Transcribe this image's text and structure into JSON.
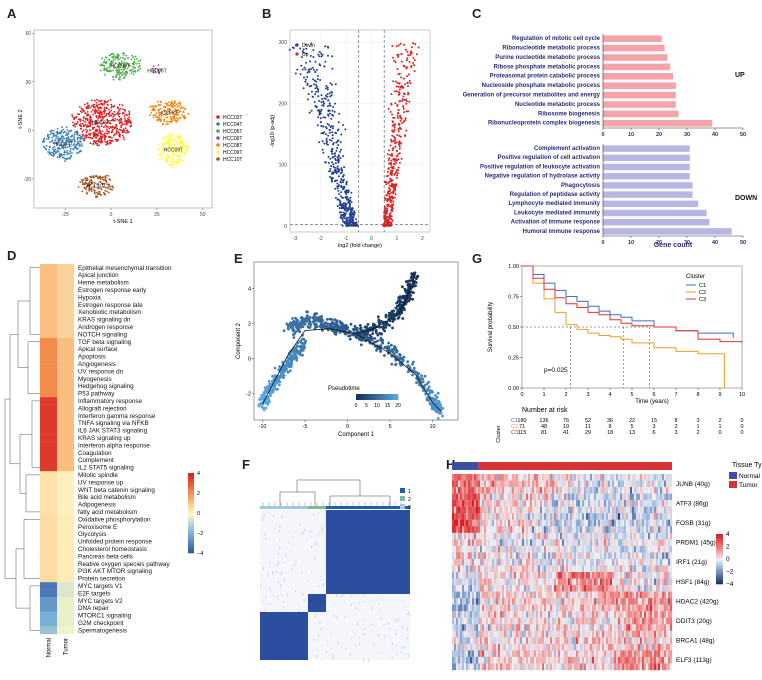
{
  "panels": {
    "A": "A",
    "B": "B",
    "C": "C",
    "D": "D",
    "E": "E",
    "F": "F",
    "G": "G",
    "H": "H"
  },
  "chart_data": [
    {
      "id": "A",
      "type": "scatter",
      "xlabel": "t-SNE 1",
      "ylabel": "t-SNE 2",
      "xticks": [
        -25,
        0,
        25,
        50
      ],
      "yticks": [
        -30,
        0,
        30,
        60
      ],
      "xlim": [
        -42,
        55
      ],
      "ylim": [
        -48,
        62
      ],
      "legend": [
        "HCC03T",
        "HCC04T",
        "HCC05T",
        "HCC06T",
        "HCC08T",
        "HCC09T",
        "HCC10T"
      ],
      "colors": [
        "#e41a1c",
        "#377eb8",
        "#4daf4a",
        "#984ea3",
        "#ff7f00",
        "#ffff33",
        "#a65628"
      ],
      "clusters": [
        {
          "label": "HCC03T",
          "cx": -5,
          "cy": 5,
          "rx": 16,
          "ry": 14
        },
        {
          "label": "HCC04T",
          "cx": -26,
          "cy": -8,
          "rx": 11,
          "ry": 10
        },
        {
          "label": "HCC05T",
          "cx": 5,
          "cy": 40,
          "rx": 11,
          "ry": 8
        },
        {
          "label": "HCC06T",
          "cx": 25,
          "cy": 37,
          "rx": 3,
          "ry": 2.5
        },
        {
          "label": "HCC08T",
          "cx": 31,
          "cy": 11,
          "rx": 10,
          "ry": 7
        },
        {
          "label": "HCC09T",
          "cx": 34,
          "cy": -12,
          "rx": 8,
          "ry": 10
        },
        {
          "label": "HCC10T",
          "cx": -8,
          "cy": -34,
          "rx": 9,
          "ry": 7
        }
      ]
    },
    {
      "id": "B",
      "type": "scatter",
      "xlabel": "log2 (fold change)",
      "ylabel": "-log10 (p-adj)",
      "xticks": [
        -3,
        -2,
        -1,
        0,
        1,
        2
      ],
      "yticks": [
        0,
        100,
        200,
        300
      ],
      "xlim": [
        -3.2,
        2.3
      ],
      "ylim": [
        -10,
        320
      ],
      "legend": [
        "Down",
        "Up"
      ],
      "colors": [
        "#223f8f",
        "#e02020"
      ]
    },
    {
      "id": "C",
      "type": "bar",
      "xlabel": "Gene count",
      "xticks": [
        0,
        10,
        20,
        30,
        40,
        50
      ],
      "xlim": [
        0,
        50
      ],
      "groups": [
        {
          "label": "UP",
          "color": "#f4a3a8",
          "categories": [
            "Regulation of mitotic cell cycle",
            "Ribonucleotide metabolic process",
            "Purine nucleotide metabolic process",
            "Ribose phosphate metabolic process",
            "Proteasomal protein catabolic process",
            "Nucleoside phosphate metabolic process",
            "Generation of precursor metabolites and energy",
            "Nucleotide metabolic process",
            "Ribosome biogenesis",
            "Ribonucleoprotein complex biogenesis"
          ],
          "values": [
            21,
            22,
            23,
            24,
            25,
            26,
            26,
            26,
            27,
            39
          ]
        },
        {
          "label": "DOWN",
          "color": "#b7b7e6",
          "categories": [
            "Complement activation",
            "Positive regulation of cell activation",
            "Positive regulation of leukocyte activation",
            "Negative regulation of hydrolase activity",
            "Phagocytosis",
            "Regulation of peptidase activity",
            "Lymphocyte mediated immunity",
            "Leukocyte mediated immunity",
            "Activation of immune response",
            "Humoral immune response"
          ],
          "values": [
            31,
            31,
            31,
            31,
            32,
            32,
            34,
            37,
            38,
            46
          ]
        }
      ]
    },
    {
      "id": "D",
      "type": "heatmap",
      "columns": [
        "Normal",
        "Tumor"
      ],
      "rows": [
        "Epithelial mesenchymal transition",
        "Apical junction",
        "Heme metabolism",
        "Estrogen response early",
        "Hypoxia",
        "Estrogen response late",
        "Xenobiotic metabolism",
        "KRAS signaling dn",
        "Androgen response",
        "NOTCH signaling",
        "TGF beta signaling",
        "Apical surface",
        "Apoptosis",
        "Angiogenesis",
        "UV response dn",
        "Myogenesis",
        "Hedgehog signaling",
        "P53 pathway",
        "Inflammatory response",
        "Allograft rejection",
        "Interferon gamma response",
        "TNFA signaling via NFKB",
        "IL6 JAK STAT3 signaling",
        "KRAS signaling up",
        "Interferon alpha response",
        "Coagulation",
        "Complement",
        "IL2 STAT5 signaling",
        "Mitotic spindle",
        "UV response up",
        "WNT beta catenin signaling",
        "Bile acid metabolism",
        "Adipogenesis",
        "fatty acid metabolism",
        "Oxidative phosphorylation",
        "Peroxisome E",
        "Glycolysis",
        "Unfolded protein response",
        "Cholesterol homeostasis",
        "Pancreas beta cells",
        "Reative oxygen species pathway",
        "PI3K AKT MTOR signaling",
        "Protein secretion",
        "MYC targets V1",
        "E2F targets",
        "MYC targets V2",
        "DNA repair",
        "MTORC1 signaling",
        "G2M checkpoint",
        "Spermatogenesis"
      ],
      "values": [
        [
          1.2,
          0.8
        ],
        [
          1.2,
          0.8
        ],
        [
          1.2,
          0.8
        ],
        [
          1.2,
          0.8
        ],
        [
          1.2,
          0.8
        ],
        [
          1.2,
          0.8
        ],
        [
          1.2,
          0.8
        ],
        [
          1.2,
          0.8
        ],
        [
          1.2,
          0.8
        ],
        [
          1.2,
          0.8
        ],
        [
          2.2,
          1.2
        ],
        [
          2.2,
          1.2
        ],
        [
          2.2,
          1.2
        ],
        [
          2.2,
          1.2
        ],
        [
          2.2,
          1.2
        ],
        [
          2.2,
          1.2
        ],
        [
          2.2,
          1.2
        ],
        [
          2.2,
          1.2
        ],
        [
          3.6,
          1.2
        ],
        [
          3.6,
          1.2
        ],
        [
          3.6,
          1.2
        ],
        [
          3.6,
          1.2
        ],
        [
          3.6,
          1.2
        ],
        [
          3.6,
          1.2
        ],
        [
          3.6,
          1.2
        ],
        [
          3.6,
          1.2
        ],
        [
          3.6,
          1.2
        ],
        [
          3.6,
          1.2
        ],
        [
          0.5,
          0.2
        ],
        [
          0.5,
          0.2
        ],
        [
          0.5,
          0.2
        ],
        [
          0.5,
          0.2
        ],
        [
          0.5,
          0.2
        ],
        [
          0.5,
          0.2
        ],
        [
          0.6,
          0.3
        ],
        [
          0.6,
          0.3
        ],
        [
          0.6,
          0.3
        ],
        [
          0.6,
          0.3
        ],
        [
          0.6,
          0.3
        ],
        [
          0.6,
          0.3
        ],
        [
          0.6,
          0.3
        ],
        [
          0.6,
          0.3
        ],
        [
          0.6,
          0.3
        ],
        [
          -3.2,
          -0.5
        ],
        [
          -3.2,
          -0.5
        ],
        [
          -2.5,
          -0.3
        ],
        [
          -2.5,
          -0.3
        ],
        [
          -2.0,
          -0.3
        ],
        [
          -2.0,
          -0.3
        ],
        [
          -1.5,
          -0.2
        ]
      ],
      "scale_ticks": [
        4,
        2,
        0,
        -2,
        -4
      ]
    },
    {
      "id": "E",
      "type": "scatter",
      "xlabel": "Component 1",
      "ylabel": "Component 2",
      "xticks": [
        -10,
        -5,
        0,
        5,
        10
      ],
      "yticks": [
        -2,
        0,
        2,
        4
      ],
      "xlim": [
        -11,
        13
      ],
      "ylim": [
        -3.5,
        5.5
      ],
      "legend_title": "Pseudotime",
      "legend_ticks": [
        0,
        5,
        10,
        15,
        20
      ]
    },
    {
      "id": "F",
      "type": "heatmap",
      "legend": [
        "1",
        "2",
        "3"
      ],
      "colors": [
        "#1f5fa8",
        "#7fb8a0",
        "#9ec9e8"
      ]
    },
    {
      "id": "G",
      "type": "line",
      "xlabel": "Time (years)",
      "ylabel": "Survival probability",
      "xticks": [
        0,
        1,
        2,
        3,
        4,
        5,
        6,
        7,
        8,
        9,
        10
      ],
      "yticks": [
        0.0,
        0.25,
        0.5,
        0.75,
        1.0
      ],
      "xlim": [
        0,
        10
      ],
      "ylim": [
        0,
        1.0
      ],
      "legend_title": "Cluster",
      "pvalue": "p=0.025",
      "risk_title": "Number at risk",
      "risk_ylabel": "Cluster",
      "series": [
        {
          "name": "C1",
          "color": "#3a6fc4",
          "x": [
            0,
            0.5,
            1,
            1.5,
            2,
            2.5,
            3,
            3.5,
            4,
            4.5,
            5,
            6,
            7,
            8,
            9,
            9.6
          ],
          "y": [
            1,
            0.93,
            0.86,
            0.8,
            0.75,
            0.71,
            0.67,
            0.63,
            0.6,
            0.58,
            0.55,
            0.5,
            0.47,
            0.45,
            0.45,
            0.41
          ]
        },
        {
          "name": "C2",
          "color": "#f29d28",
          "x": [
            0,
            0.5,
            1,
            1.5,
            2,
            2.5,
            3,
            3.5,
            4,
            4.5,
            5,
            6,
            7,
            8,
            9,
            9.2
          ],
          "y": [
            1,
            0.86,
            0.73,
            0.62,
            0.52,
            0.48,
            0.45,
            0.43,
            0.42,
            0.4,
            0.37,
            0.33,
            0.3,
            0.28,
            0.28,
            0.0
          ]
        },
        {
          "name": "C3",
          "color": "#e5312f",
          "x": [
            0,
            0.5,
            1,
            1.5,
            2,
            2.5,
            3,
            3.5,
            4,
            4.5,
            5,
            6,
            7,
            8,
            9,
            10
          ],
          "y": [
            1,
            0.9,
            0.81,
            0.74,
            0.69,
            0.66,
            0.62,
            0.6,
            0.56,
            0.53,
            0.51,
            0.5,
            0.47,
            0.4,
            0.38,
            0.37
          ]
        }
      ],
      "risk_table": [
        {
          "name": "C1",
          "color": "#3a6fc4",
          "values": [
            "180",
            "136",
            "76",
            "52",
            "36",
            "22",
            "15",
            "8",
            "3",
            "2",
            "0"
          ]
        },
        {
          "name": "C2",
          "color": "#f29d28",
          "values": [
            "71",
            "48",
            "19",
            "11",
            "8",
            "5",
            "3",
            "2",
            "1",
            "1",
            "0"
          ]
        },
        {
          "name": "C3",
          "color": "#e5312f",
          "values": [
            "115",
            "81",
            "41",
            "29",
            "18",
            "13",
            "6",
            "3",
            "2",
            "0",
            "0"
          ]
        }
      ]
    },
    {
      "id": "H",
      "type": "heatmap",
      "legend_title": "Tissue Type",
      "tissue": [
        "Normal",
        "Tumor"
      ],
      "tissue_colors": [
        "#3a4fa5",
        "#d53333"
      ],
      "rows": [
        "JUNB (40g)",
        "ATF3 (86g)",
        "FOSB (31g)",
        "PRDM1 (45g)",
        "IRF1 (21g)",
        "HSF1 (84g)",
        "HDAC2 (420g)",
        "DDIT3 (20g)",
        "BRCA1 (48g)",
        "ELF3 (113g)"
      ],
      "scale_ticks": [
        "4",
        "2",
        "0",
        "−2",
        "−4"
      ]
    }
  ]
}
